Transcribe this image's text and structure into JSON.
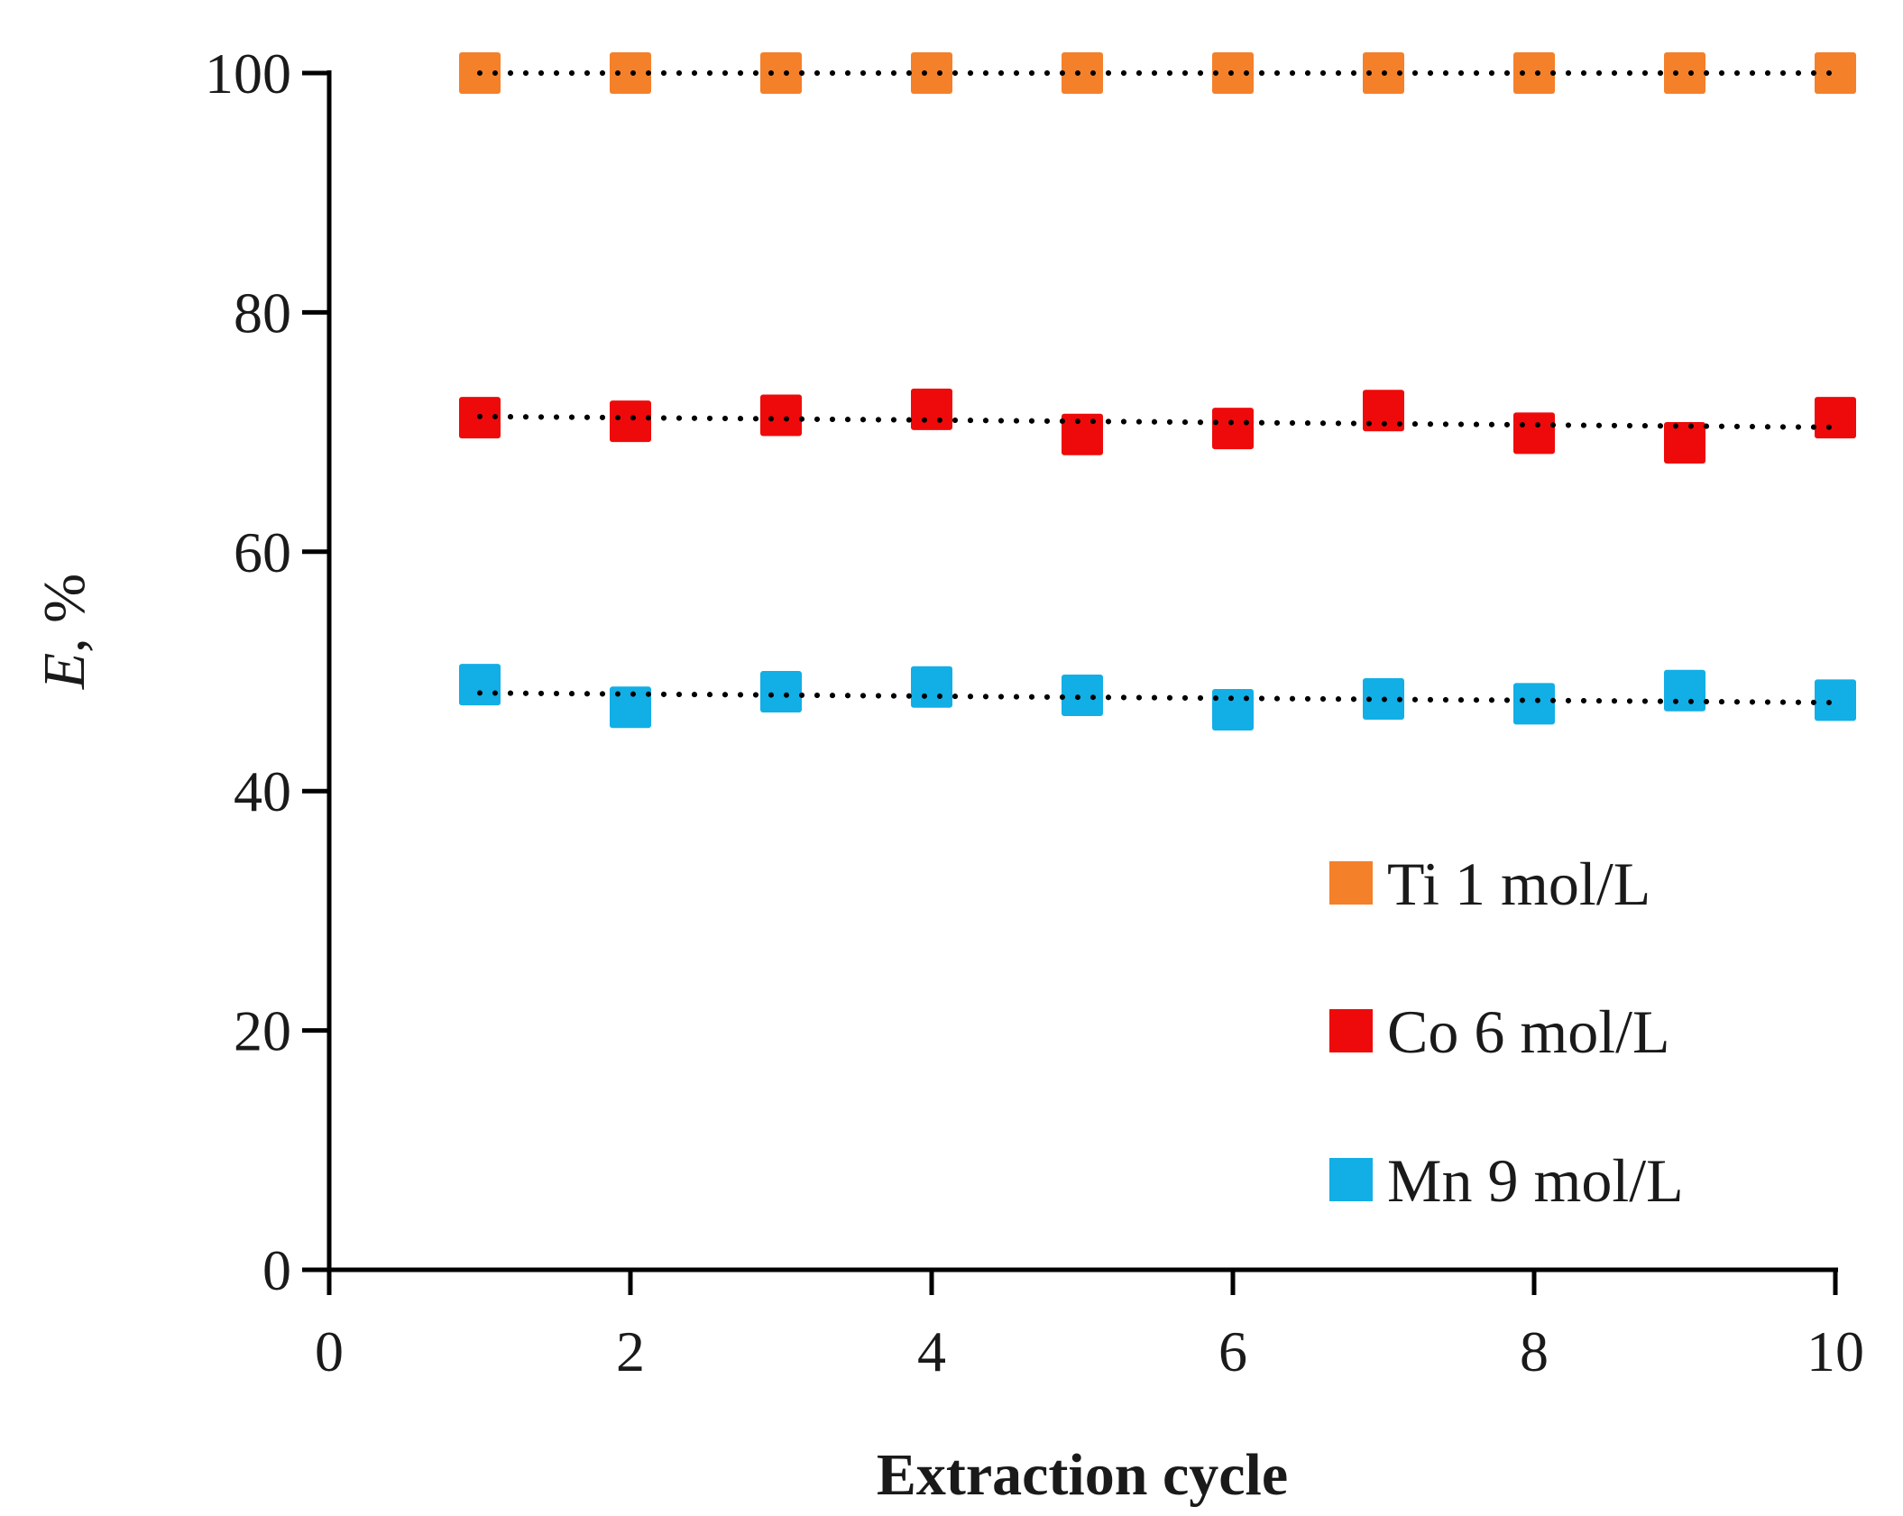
{
  "chart_data": {
    "type": "scatter",
    "title": "",
    "xlabel": "Extraction cycle",
    "ylabel_italic": "E",
    "ylabel_rest": ", %",
    "xlim": [
      0,
      10
    ],
    "ylim": [
      0,
      100
    ],
    "x_ticks": [
      0,
      2,
      4,
      6,
      8,
      10
    ],
    "y_ticks": [
      0,
      20,
      40,
      60,
      80,
      100
    ],
    "grid": false,
    "legend_position": "right-middle",
    "trendline_style": "dotted linear",
    "x": [
      1,
      2,
      3,
      4,
      5,
      6,
      7,
      8,
      9,
      10
    ],
    "series": [
      {
        "name": "Ti 1 mol/L",
        "color": "#F4802A",
        "values": [
          100,
          100,
          100,
          100,
          100,
          100,
          100,
          100,
          100,
          100
        ],
        "trend": [
          100,
          100
        ]
      },
      {
        "name": "Co 6 mol/L",
        "color": "#EE0A0A",
        "values": [
          71.2,
          70.9,
          71.4,
          71.9,
          69.8,
          70.3,
          71.8,
          69.9,
          69.1,
          71.2
        ],
        "trend": [
          71.3,
          70.4
        ]
      },
      {
        "name": "Mn 9 mol/L",
        "color": "#12AEE6",
        "values": [
          48.9,
          47.0,
          48.3,
          48.7,
          48.0,
          46.8,
          47.7,
          47.3,
          48.4,
          47.6
        ],
        "trend": [
          48.2,
          47.4
        ]
      }
    ]
  }
}
